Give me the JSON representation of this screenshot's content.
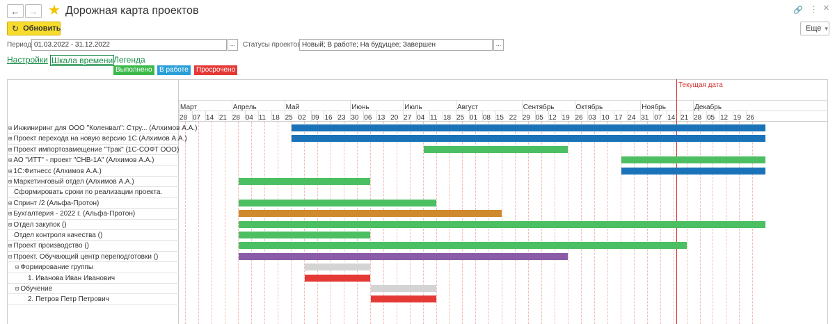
{
  "window": {
    "title": "Дорожная карта проектов",
    "back_icon": "←",
    "forward_icon": "→",
    "star_icon": "★",
    "link_icon": "🔗",
    "menu_icon": "⋮",
    "close_icon": "×"
  },
  "toolbar": {
    "refresh_label": "Обновить",
    "refresh_icon": "↻",
    "more_label": "Еще",
    "more_arrow": "▾"
  },
  "filters": {
    "period_label": "Период:",
    "period_value": "01.03.2022 - 31.12.2022",
    "period_select": "...",
    "status_label": "Статусы проектов:",
    "status_value": "Новый; В работе; На будущее; Завершен",
    "status_select": "..."
  },
  "links": {
    "settings": "Настройки",
    "timescale": "Шкала времени",
    "legend": "Легенда"
  },
  "legend_items": [
    {
      "label": "Выполнено",
      "color": "#3cb94a"
    },
    {
      "label": "В работе",
      "color": "#2b9fd9"
    },
    {
      "label": "Просрочено",
      "color": "#e53935"
    }
  ],
  "timeline": {
    "today_label": "Текущая дата",
    "months": [
      "Март",
      "Апрель",
      "Май",
      "Июнь",
      "Июль",
      "Август",
      "Сентябрь",
      "Октябрь",
      "Ноябрь",
      "Декабрь"
    ],
    "days": [
      "28",
      "07",
      "14",
      "21",
      "28",
      "04",
      "11",
      "18",
      "25",
      "02",
      "09",
      "16",
      "23",
      "30",
      "06",
      "13",
      "20",
      "27",
      "04",
      "11",
      "18",
      "25",
      "01",
      "08",
      "15",
      "22",
      "29",
      "05",
      "12",
      "19",
      "26",
      "03",
      "10",
      "17",
      "24",
      "31",
      "07",
      "14",
      "21",
      "28",
      "05",
      "12",
      "19",
      "26"
    ]
  },
  "rows": [
    {
      "expander": "⊞",
      "label": "Инжиниринг для ООО \"Коленвал\": Стру... (Алхимов А.А.)"
    },
    {
      "expander": "⊞",
      "label": "Проект перехода на новую версию 1С (Алхимов А.А.)"
    },
    {
      "expander": "⊞",
      "label": "Проект импортозамещение \"Трак\" (1С-СОФТ ООО)"
    },
    {
      "expander": "⊞",
      "label": "АО \"ИТТ\" - проект \"СНВ-1А\" (Алхимов А.А.)"
    },
    {
      "expander": "⊞",
      "label": "1С:Фитнесс (Алхимов А.А.)"
    },
    {
      "expander": "⊞",
      "label": "Маркетинговый отдел (Алхимов А.А.)"
    },
    {
      "expander": "",
      "label": "Сформировать сроки по реализации проекта."
    },
    {
      "expander": "⊞",
      "label": "Спринт /2 (Альфа-Протон)"
    },
    {
      "expander": "⊞",
      "label": "Бухгалтерия - 2022 г. (Альфа-Протон)"
    },
    {
      "expander": "⊞",
      "label": "Отдел закупок ()"
    },
    {
      "expander": "",
      "label": "Отдел контроля качества ()"
    },
    {
      "expander": "⊞",
      "label": "Проект производство ()"
    },
    {
      "expander": "⊟",
      "label": "Проект. Обучающий центр переподготовки ()"
    },
    {
      "expander": "⊟",
      "label": "Формирование группы"
    },
    {
      "expander": "",
      "label": "1. Иванова Иван Иванович"
    },
    {
      "expander": "⊟",
      "label": "Обучение"
    },
    {
      "expander": "",
      "label": "2. Петров Петр Петрович"
    }
  ],
  "colors": {
    "completed": "#4cbf63",
    "in_progress": "#1a73b8",
    "overdue": "#e53935",
    "orange": "#cf8a2e",
    "purple": "#8a5ca8",
    "planned": "#d4d4d4",
    "today": "#d32f2f"
  }
}
